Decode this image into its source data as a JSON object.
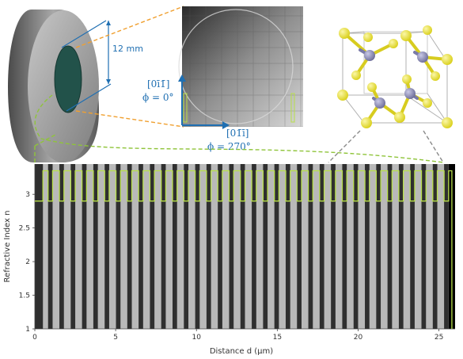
{
  "top_panel": {
    "disk_dimension_label": "12 mm",
    "orientation_vertical": {
      "direction": "[0ī1̄]",
      "angle": "ϕ = 0°"
    },
    "orientation_horizontal": {
      "direction": "[01̄ī]",
      "angle": "ϕ = 270°"
    },
    "colors": {
      "accent_blue": "#1f6fb2",
      "guide_orange": "#f0a030",
      "guide_green": "#8fc43a",
      "guide_gray": "#8a8a8a"
    }
  },
  "plot": {
    "xlabel": "Distance d (μm)",
    "ylabel": "Refractive Index n",
    "x_ticks": [
      "0",
      "5",
      "10",
      "15",
      "20",
      "25"
    ],
    "y_ticks": [
      "1",
      "1.5",
      "2",
      "2.5",
      "3"
    ],
    "colors": {
      "profile": "#b8e04a",
      "background": "#2f2f2f"
    }
  },
  "chart_data": {
    "type": "line",
    "title": "",
    "xlabel": "Distance d (μm)",
    "ylabel": "Refractive Index n",
    "xlim": [
      0,
      26
    ],
    "ylim": [
      1,
      3.45
    ],
    "x_ticks": [
      0,
      5,
      10,
      15,
      20,
      25
    ],
    "y_ticks": [
      1,
      1.5,
      2,
      2.5,
      3
    ],
    "series": [
      {
        "type": "square-wave",
        "n_low": 2.9,
        "n_high": 3.35,
        "transitions_um": [
          0.5,
          0.82,
          1.1,
          1.52,
          1.8,
          2.22,
          2.5,
          2.92,
          3.2,
          3.62,
          3.9,
          4.32,
          4.6,
          5.02,
          5.3,
          5.72,
          6.0,
          6.42,
          6.7,
          7.12,
          7.4,
          7.82,
          8.1,
          8.52,
          8.8,
          9.22,
          9.5,
          9.92,
          10.2,
          10.62,
          10.9,
          11.32,
          11.6,
          12.02,
          12.3,
          12.72,
          13.0,
          13.42,
          13.7,
          14.12,
          14.4,
          14.82,
          15.1,
          15.52,
          15.8,
          16.22,
          16.5,
          16.92,
          17.2,
          17.62,
          17.9,
          18.32,
          18.6,
          19.02,
          19.3,
          19.72,
          20.0,
          20.42,
          20.7,
          21.12,
          21.4,
          21.82,
          22.1,
          22.52,
          22.8,
          23.22,
          23.5,
          23.92,
          24.2,
          24.62,
          24.9,
          25.32,
          25.6
        ],
        "start_level": "low",
        "end_drop_um": 25.8
      }
    ]
  }
}
